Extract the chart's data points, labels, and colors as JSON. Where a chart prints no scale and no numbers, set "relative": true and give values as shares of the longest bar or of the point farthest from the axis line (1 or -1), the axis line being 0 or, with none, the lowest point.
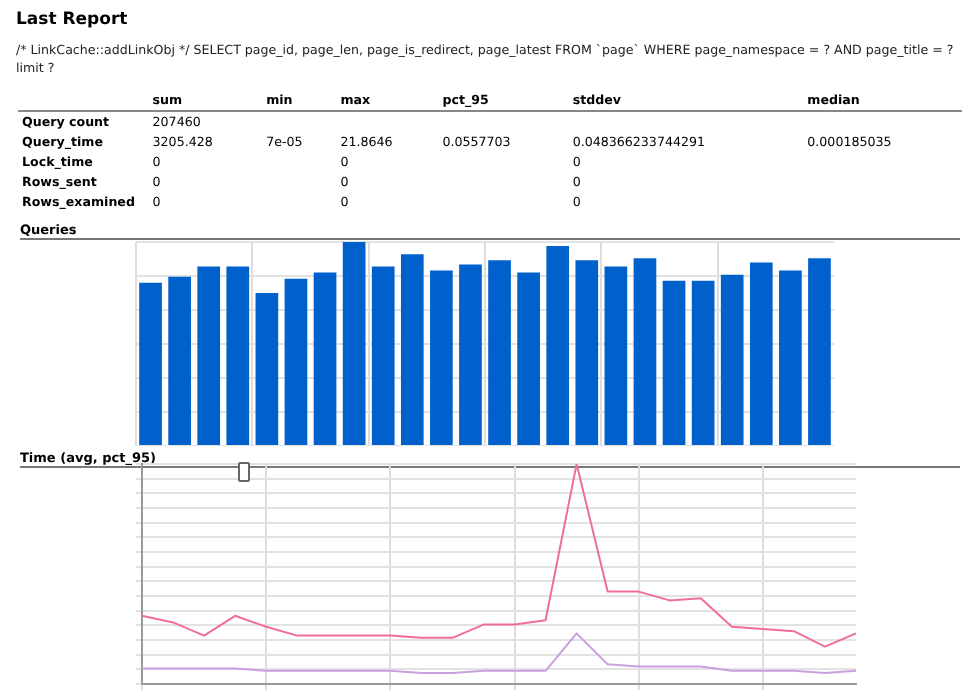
{
  "chart_data": [
    {
      "type": "other",
      "title": "Last Report",
      "subtitle": "/* LinkCache::addLinkObj */ SELECT page_id, page_len, page_is_redirect, page_latest FROM `page` WHERE page_namespace = ? AND page_title = ? limit ?",
      "categories": [
        "sum",
        "min",
        "max",
        "pct_95",
        "stddev",
        "median"
      ],
      "y_categories": [
        "Query count",
        "Query_time",
        "Lock_time",
        "Rows_sent",
        "Rows_examined"
      ],
      "cell_labels": [
        [
          "207460",
          null,
          null,
          null,
          null,
          null
        ],
        [
          "3205.428",
          "7e-05",
          "21.8646",
          "0.0557703",
          "0.048366233744291",
          "0.000185035"
        ],
        [
          "0",
          null,
          "0",
          null,
          "0",
          null
        ],
        [
          "0",
          null,
          "0",
          null,
          "0",
          null
        ],
        [
          "0",
          null,
          "0",
          null,
          "0",
          null
        ]
      ]
    },
    {
      "type": "bar",
      "title": "Queries",
      "relative": true,
      "grid": true,
      "categories": [
        null,
        null,
        null,
        null,
        null,
        null,
        null,
        null,
        null,
        null,
        null,
        null,
        null,
        null,
        null,
        null,
        null,
        null,
        null,
        null,
        null,
        null,
        null,
        null
      ],
      "series": [
        {
          "color": "#0060cc",
          "values": [
            0.8,
            0.83,
            0.88,
            0.88,
            0.75,
            0.82,
            0.85,
            1,
            0.88,
            0.94,
            0.86,
            0.89,
            0.91,
            0.85,
            0.98,
            0.91,
            0.88,
            0.92,
            0.81,
            0.81,
            0.84,
            0.9,
            0.86,
            0.92
          ]
        }
      ]
    },
    {
      "type": "line",
      "title": "Time (avg, pct_95)",
      "relative": true,
      "grid": true,
      "marker": "none",
      "categories": [
        null,
        null,
        null,
        null,
        null,
        null,
        null,
        null,
        null,
        null,
        null,
        null,
        null,
        null,
        null,
        null,
        null,
        null,
        null,
        null,
        null,
        null,
        null,
        null
      ],
      "series": [
        {
          "color": "#f06ca0",
          "values": [
            0.31,
            0.28,
            0.22,
            0.31,
            0.26,
            0.22,
            0.22,
            0.22,
            0.22,
            0.21,
            0.21,
            0.27,
            0.27,
            0.29,
            1,
            0.42,
            0.42,
            0.38,
            0.39,
            0.26,
            0.25,
            0.24,
            0.17,
            0.23
          ]
        },
        {
          "color": "#c8a0e0",
          "values": [
            0.07,
            0.07,
            0.07,
            0.07,
            0.06,
            0.06,
            0.06,
            0.06,
            0.06,
            0.05,
            0.05,
            0.06,
            0.06,
            0.06,
            0.23,
            0.09,
            0.08,
            0.08,
            0.08,
            0.06,
            0.06,
            0.06,
            0.05,
            0.06
          ]
        }
      ]
    }
  ]
}
